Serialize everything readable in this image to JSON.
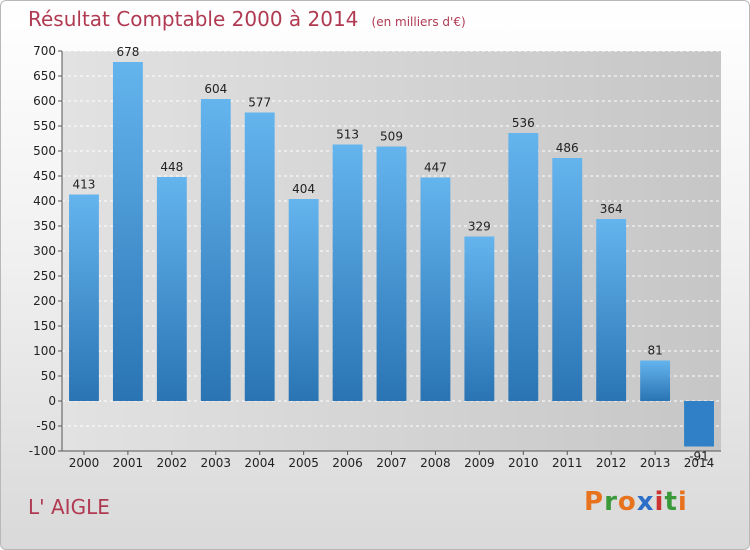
{
  "header": {
    "title": "Résultat Comptable 2000 à 2014",
    "unit": "(en milliers d'€)"
  },
  "footer": {
    "place": "L' AIGLE",
    "logo_letters": [
      "P",
      "r",
      "o",
      "x",
      "i",
      "t",
      "i"
    ],
    "logo_colors": [
      "#e8731e",
      "#3a9a3a",
      "#e8731e",
      "#2b6fc9",
      "#c33",
      "#3a9a3a",
      "#e8731e"
    ]
  },
  "chart_data": {
    "type": "bar",
    "categories": [
      "2000",
      "2001",
      "2002",
      "2003",
      "2004",
      "2005",
      "2006",
      "2007",
      "2008",
      "2009",
      "2010",
      "2011",
      "2012",
      "2013",
      "2014"
    ],
    "values": [
      413,
      678,
      448,
      604,
      577,
      404,
      513,
      509,
      447,
      329,
      536,
      486,
      364,
      81,
      -91
    ],
    "value_labels": [
      "413",
      "678",
      "448",
      "604",
      "577",
      "404",
      "513",
      "509",
      "447",
      "329",
      "536",
      "486",
      "364",
      "81",
      "-91"
    ],
    "ylim": [
      -100,
      700
    ],
    "yticks": [
      700,
      650,
      600,
      550,
      500,
      450,
      400,
      350,
      300,
      250,
      200,
      150,
      100,
      50,
      0,
      -50,
      -100
    ],
    "grid": true,
    "bar_color_light": "#64b4ee",
    "bar_color_dark": "#2a74b4",
    "negative_bar_color": "#2f80c6",
    "plot_bg_light": "#e2e2e2",
    "plot_bg_dark": "#c6c6c6",
    "title": "Résultat Comptable 2000 à 2014",
    "xlabel": "",
    "ylabel": ""
  }
}
